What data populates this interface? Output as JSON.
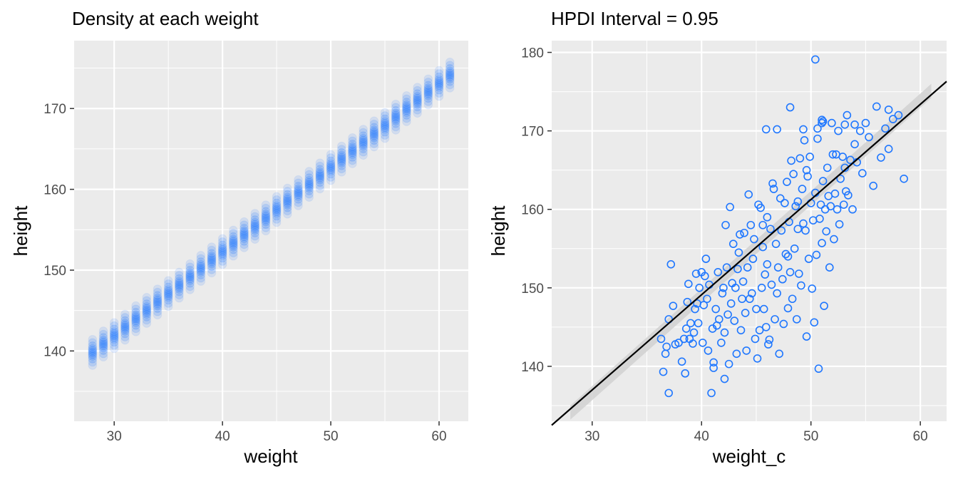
{
  "colors": {
    "panel_bg": "#ebebeb",
    "grid_major": "#ffffff",
    "point_blue": "#1f77ff",
    "ribbon": "#d3d3d3",
    "line": "#000000",
    "tick_label": "#4d4d4d",
    "tick_mark": "#333333"
  },
  "chart_data": [
    {
      "type": "scatter",
      "title": "Density at each weight",
      "xlabel": "weight",
      "ylabel": "height",
      "xlim": [
        26.3,
        62.7
      ],
      "ylim": [
        131.3,
        178.4
      ],
      "xticks": [
        30,
        40,
        50,
        60
      ],
      "xtick_labels": [
        "30",
        "40",
        "50",
        "60"
      ],
      "yticks": [
        140,
        150,
        160,
        170
      ],
      "ytick_labels": [
        "140",
        "150",
        "160",
        "170"
      ],
      "grid": true,
      "marker": "filled circle, semi-transparent",
      "x_values": [
        28,
        29,
        30,
        31,
        32,
        33,
        34,
        35,
        36,
        37,
        38,
        39,
        40,
        41,
        42,
        43,
        44,
        45,
        46,
        47,
        48,
        49,
        50,
        51,
        52,
        53,
        54,
        55,
        56,
        57,
        58,
        59,
        60,
        61
      ],
      "mean_line": {
        "intercept": 110.7,
        "slope": 1.04
      },
      "band_halfwidth": 1.6
    },
    {
      "type": "scatter",
      "title": "HPDI Interval = 0.95",
      "xlabel": "weight_c",
      "ylabel": "height",
      "xlim": [
        26.3,
        62.4
      ],
      "ylim": [
        133.0,
        181.5
      ],
      "xticks": [
        30,
        40,
        50,
        60
      ],
      "xtick_labels": [
        "30",
        "40",
        "50",
        "60"
      ],
      "yticks": [
        140,
        150,
        160,
        170,
        180
      ],
      "ytick_labels": [
        "140",
        "150",
        "160",
        "170",
        "180"
      ],
      "grid": true,
      "marker": "open circle",
      "regression_line": {
        "x0": 26.3,
        "y0": 132.5,
        "x1": 62.4,
        "y1": 176.3
      },
      "hpdi_ribbon": {
        "x_start": 28.0,
        "x_end": 61.0,
        "lower_start": 133.2,
        "upper_start": 135.0,
        "lower_end": 174.2,
        "upper_end": 176.0
      },
      "points": [
        [
          50.4,
          179.1
        ],
        [
          57.1,
          172.7
        ],
        [
          48.1,
          173.0
        ],
        [
          53.1,
          170.8
        ],
        [
          54.0,
          170.8
        ],
        [
          45.9,
          170.2
        ],
        [
          46.9,
          170.2
        ],
        [
          49.3,
          170.2
        ],
        [
          51.0,
          171.4
        ],
        [
          51.0,
          171.0
        ],
        [
          51.1,
          171.2
        ],
        [
          36.3,
          143.5
        ],
        [
          36.7,
          141.6
        ],
        [
          36.8,
          142.5
        ],
        [
          37.0,
          136.6
        ],
        [
          37.0,
          146.0
        ],
        [
          37.2,
          153.0
        ],
        [
          37.6,
          142.8
        ],
        [
          37.9,
          143.0
        ],
        [
          38.2,
          140.6
        ],
        [
          38.4,
          143.5
        ],
        [
          38.5,
          139.1
        ],
        [
          38.6,
          144.8
        ],
        [
          38.8,
          150.5
        ],
        [
          38.9,
          143.5
        ],
        [
          39.0,
          145.5
        ],
        [
          39.2,
          142.9
        ],
        [
          39.3,
          144.3
        ],
        [
          39.4,
          147.3
        ],
        [
          39.5,
          151.8
        ],
        [
          39.6,
          148.0
        ],
        [
          39.8,
          150.0
        ],
        [
          40.0,
          152.0
        ],
        [
          40.1,
          143.0
        ],
        [
          40.2,
          147.8
        ],
        [
          40.4,
          153.7
        ],
        [
          40.5,
          148.6
        ],
        [
          40.6,
          142.0
        ],
        [
          40.7,
          150.4
        ],
        [
          40.9,
          136.6
        ],
        [
          41.0,
          144.8
        ],
        [
          41.1,
          140.5
        ],
        [
          41.1,
          139.8
        ],
        [
          41.3,
          147.3
        ],
        [
          41.5,
          152.0
        ],
        [
          41.6,
          146.0
        ],
        [
          41.8,
          143.0
        ],
        [
          42.0,
          150.0
        ],
        [
          42.1,
          144.3
        ],
        [
          42.1,
          138.4
        ],
        [
          42.2,
          158.0
        ],
        [
          42.3,
          152.6
        ],
        [
          42.5,
          140.3
        ],
        [
          42.6,
          160.3
        ],
        [
          42.7,
          148.0
        ],
        [
          42.8,
          150.6
        ],
        [
          43.0,
          145.8
        ],
        [
          43.1,
          150.0
        ],
        [
          43.2,
          141.6
        ],
        [
          43.4,
          154.5
        ],
        [
          43.5,
          156.8
        ],
        [
          43.6,
          144.6
        ],
        [
          43.7,
          148.6
        ],
        [
          43.8,
          150.8
        ],
        [
          44.0,
          146.8
        ],
        [
          44.1,
          142.0
        ],
        [
          44.2,
          152.6
        ],
        [
          44.3,
          161.9
        ],
        [
          44.5,
          158.0
        ],
        [
          44.6,
          149.3
        ],
        [
          44.7,
          153.7
        ],
        [
          44.8,
          156.2
        ],
        [
          45.0,
          147.3
        ],
        [
          45.1,
          141.0
        ],
        [
          45.2,
          160.6
        ],
        [
          45.3,
          144.6
        ],
        [
          45.5,
          150.0
        ],
        [
          45.6,
          155.2
        ],
        [
          45.7,
          147.3
        ],
        [
          45.8,
          151.7
        ],
        [
          46.0,
          159.0
        ],
        [
          46.1,
          142.8
        ],
        [
          46.2,
          143.4
        ],
        [
          46.3,
          157.5
        ],
        [
          46.4,
          150.4
        ],
        [
          46.6,
          162.6
        ],
        [
          46.7,
          146.0
        ],
        [
          46.8,
          155.6
        ],
        [
          46.9,
          149.3
        ],
        [
          47.0,
          152.6
        ],
        [
          47.1,
          141.6
        ],
        [
          47.3,
          157.3
        ],
        [
          47.4,
          151.1
        ],
        [
          47.5,
          145.4
        ],
        [
          47.6,
          160.8
        ],
        [
          47.7,
          154.3
        ],
        [
          47.8,
          163.5
        ],
        [
          47.9,
          147.4
        ],
        [
          48.0,
          158.4
        ],
        [
          48.1,
          152.0
        ],
        [
          48.3,
          148.6
        ],
        [
          48.4,
          164.5
        ],
        [
          48.5,
          155.0
        ],
        [
          48.6,
          160.4
        ],
        [
          48.7,
          146.0
        ],
        [
          48.8,
          157.5
        ],
        [
          48.9,
          151.8
        ],
        [
          49.0,
          166.5
        ],
        [
          49.1,
          150.3
        ],
        [
          49.2,
          162.6
        ],
        [
          49.3,
          158.2
        ],
        [
          49.5,
          157.3
        ],
        [
          49.6,
          143.8
        ],
        [
          49.7,
          164.2
        ],
        [
          49.8,
          153.7
        ],
        [
          49.9,
          166.7
        ],
        [
          50.0,
          160.8
        ],
        [
          50.1,
          149.9
        ],
        [
          50.2,
          158.6
        ],
        [
          50.3,
          145.6
        ],
        [
          50.4,
          162.1
        ],
        [
          50.5,
          154.2
        ],
        [
          50.6,
          169.0
        ],
        [
          50.7,
          139.7
        ],
        [
          50.8,
          158.8
        ],
        [
          50.9,
          160.6
        ],
        [
          51.0,
          155.7
        ],
        [
          51.1,
          163.6
        ],
        [
          51.2,
          147.7
        ],
        [
          51.3,
          160.0
        ],
        [
          51.4,
          157.2
        ],
        [
          51.5,
          165.3
        ],
        [
          51.6,
          161.7
        ],
        [
          51.7,
          152.6
        ],
        [
          51.8,
          160.4
        ],
        [
          52.0,
          167.0
        ],
        [
          52.1,
          156.2
        ],
        [
          52.2,
          162.0
        ],
        [
          52.3,
          167.0
        ],
        [
          52.4,
          160.0
        ],
        [
          52.5,
          170.0
        ],
        [
          52.6,
          158.1
        ],
        [
          52.7,
          163.9
        ],
        [
          52.9,
          166.7
        ],
        [
          53.0,
          160.6
        ],
        [
          53.1,
          165.3
        ],
        [
          53.3,
          172.0
        ],
        [
          53.4,
          161.8
        ],
        [
          53.6,
          166.3
        ],
        [
          53.8,
          160.0
        ],
        [
          54.0,
          168.3
        ],
        [
          54.2,
          166.0
        ],
        [
          54.5,
          170.0
        ],
        [
          54.7,
          164.6
        ],
        [
          55.0,
          171.0
        ],
        [
          55.3,
          169.2
        ],
        [
          55.7,
          163.0
        ],
        [
          56.0,
          173.1
        ],
        [
          56.4,
          166.6
        ],
        [
          56.8,
          170.3
        ],
        [
          57.1,
          167.7
        ],
        [
          57.5,
          171.5
        ],
        [
          58.0,
          172.0
        ],
        [
          58.5,
          163.9
        ],
        [
          45.4,
          160.2
        ],
        [
          44.9,
          143.5
        ],
        [
          43.9,
          157.0
        ],
        [
          42.9,
          155.6
        ],
        [
          41.9,
          149.3
        ],
        [
          46.5,
          163.3
        ],
        [
          47.2,
          161.4
        ],
        [
          48.2,
          166.2
        ],
        [
          49.4,
          168.8
        ],
        [
          50.6,
          170.3
        ],
        [
          51.9,
          171.0
        ],
        [
          53.2,
          162.3
        ],
        [
          45.9,
          145.0
        ],
        [
          44.4,
          148.6
        ],
        [
          43.3,
          152.4
        ],
        [
          42.4,
          146.6
        ],
        [
          41.4,
          145.2
        ],
        [
          40.3,
          151.5
        ],
        [
          39.7,
          145.5
        ],
        [
          38.7,
          148.2
        ],
        [
          37.4,
          147.7
        ],
        [
          36.5,
          139.3
        ],
        [
          47.9,
          154.0
        ],
        [
          48.8,
          161.0
        ],
        [
          49.6,
          165.0
        ],
        [
          46.0,
          153.0
        ],
        [
          45.6,
          158.0
        ]
      ]
    }
  ]
}
